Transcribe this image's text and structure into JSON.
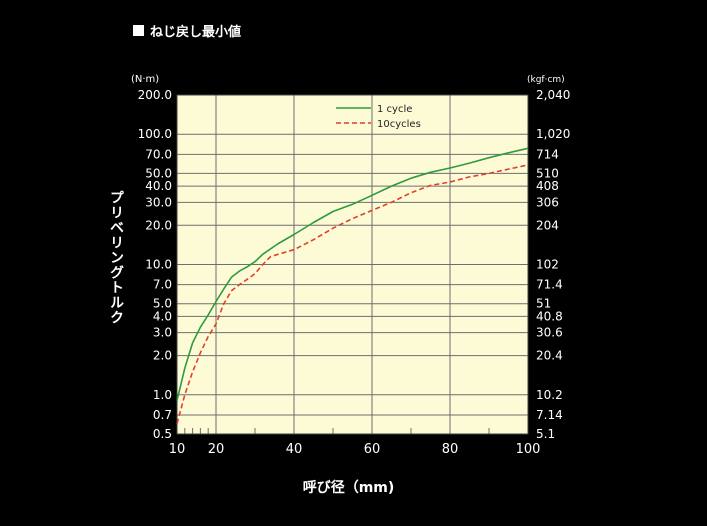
{
  "title": "ねじ戻し最小値",
  "chart_data": {
    "type": "line",
    "xlabel": "呼び径（mm)",
    "ylabel": "プリベリングトルク",
    "y_unit_left": "(N·m)",
    "y_unit_right": "(kgf·cm)",
    "xlim": [
      10,
      100
    ],
    "ylim": [
      0.5,
      200
    ],
    "y_scale": "log",
    "x_ticks": [
      "10",
      "20",
      "40",
      "60",
      "80",
      "100"
    ],
    "y_ticks_left": [
      "200.0",
      "100.0",
      "70.0",
      "50.0",
      "40.0",
      "30.0",
      "20.0",
      "10.0",
      "7.0",
      "5.0",
      "4.0",
      "3.0",
      "2.0",
      "1.0",
      "0.7",
      "0.5"
    ],
    "y_ticks_right": [
      "2,040",
      "1,020",
      "714",
      "510",
      "408",
      "306",
      "204",
      "102",
      "71.4",
      "51",
      "40.8",
      "30.6",
      "20.4",
      "10.2",
      "7.14",
      "5.1"
    ],
    "grid": true,
    "legend_position": "top-center",
    "background_color": "#fdfbd6",
    "series": [
      {
        "name": "1 cycle",
        "color": "#2e9b3e",
        "dash": "solid",
        "x": [
          10,
          12,
          14,
          16,
          18,
          20,
          22,
          24,
          26,
          28,
          30,
          32,
          36,
          40,
          45,
          50,
          55,
          60,
          65,
          70,
          75,
          80,
          85,
          90,
          95,
          100
        ],
        "y": [
          0.9,
          1.6,
          2.5,
          3.3,
          4.1,
          5.2,
          6.5,
          8.0,
          8.9,
          9.6,
          10.5,
          12.0,
          14.5,
          17.0,
          21.0,
          25.5,
          29.0,
          34.0,
          40.0,
          46.0,
          51.0,
          55.0,
          60.0,
          66.0,
          72.0,
          78.0
        ]
      },
      {
        "name": "10cycles",
        "color": "#e0402b",
        "dash": "dashed",
        "x": [
          10,
          12,
          14,
          16,
          18,
          20,
          22,
          24,
          26,
          28,
          30,
          32,
          34,
          36,
          40,
          45,
          50,
          55,
          60,
          65,
          70,
          75,
          80,
          85,
          90,
          95,
          100
        ],
        "y": [
          0.6,
          1.0,
          1.5,
          2.1,
          2.8,
          3.5,
          5.0,
          6.3,
          7.0,
          7.7,
          8.5,
          10.0,
          11.5,
          12.0,
          13.0,
          15.5,
          19.0,
          22.5,
          26.0,
          30.0,
          35.5,
          40.5,
          43.0,
          47.0,
          50.0,
          54.0,
          58.0
        ]
      }
    ]
  }
}
